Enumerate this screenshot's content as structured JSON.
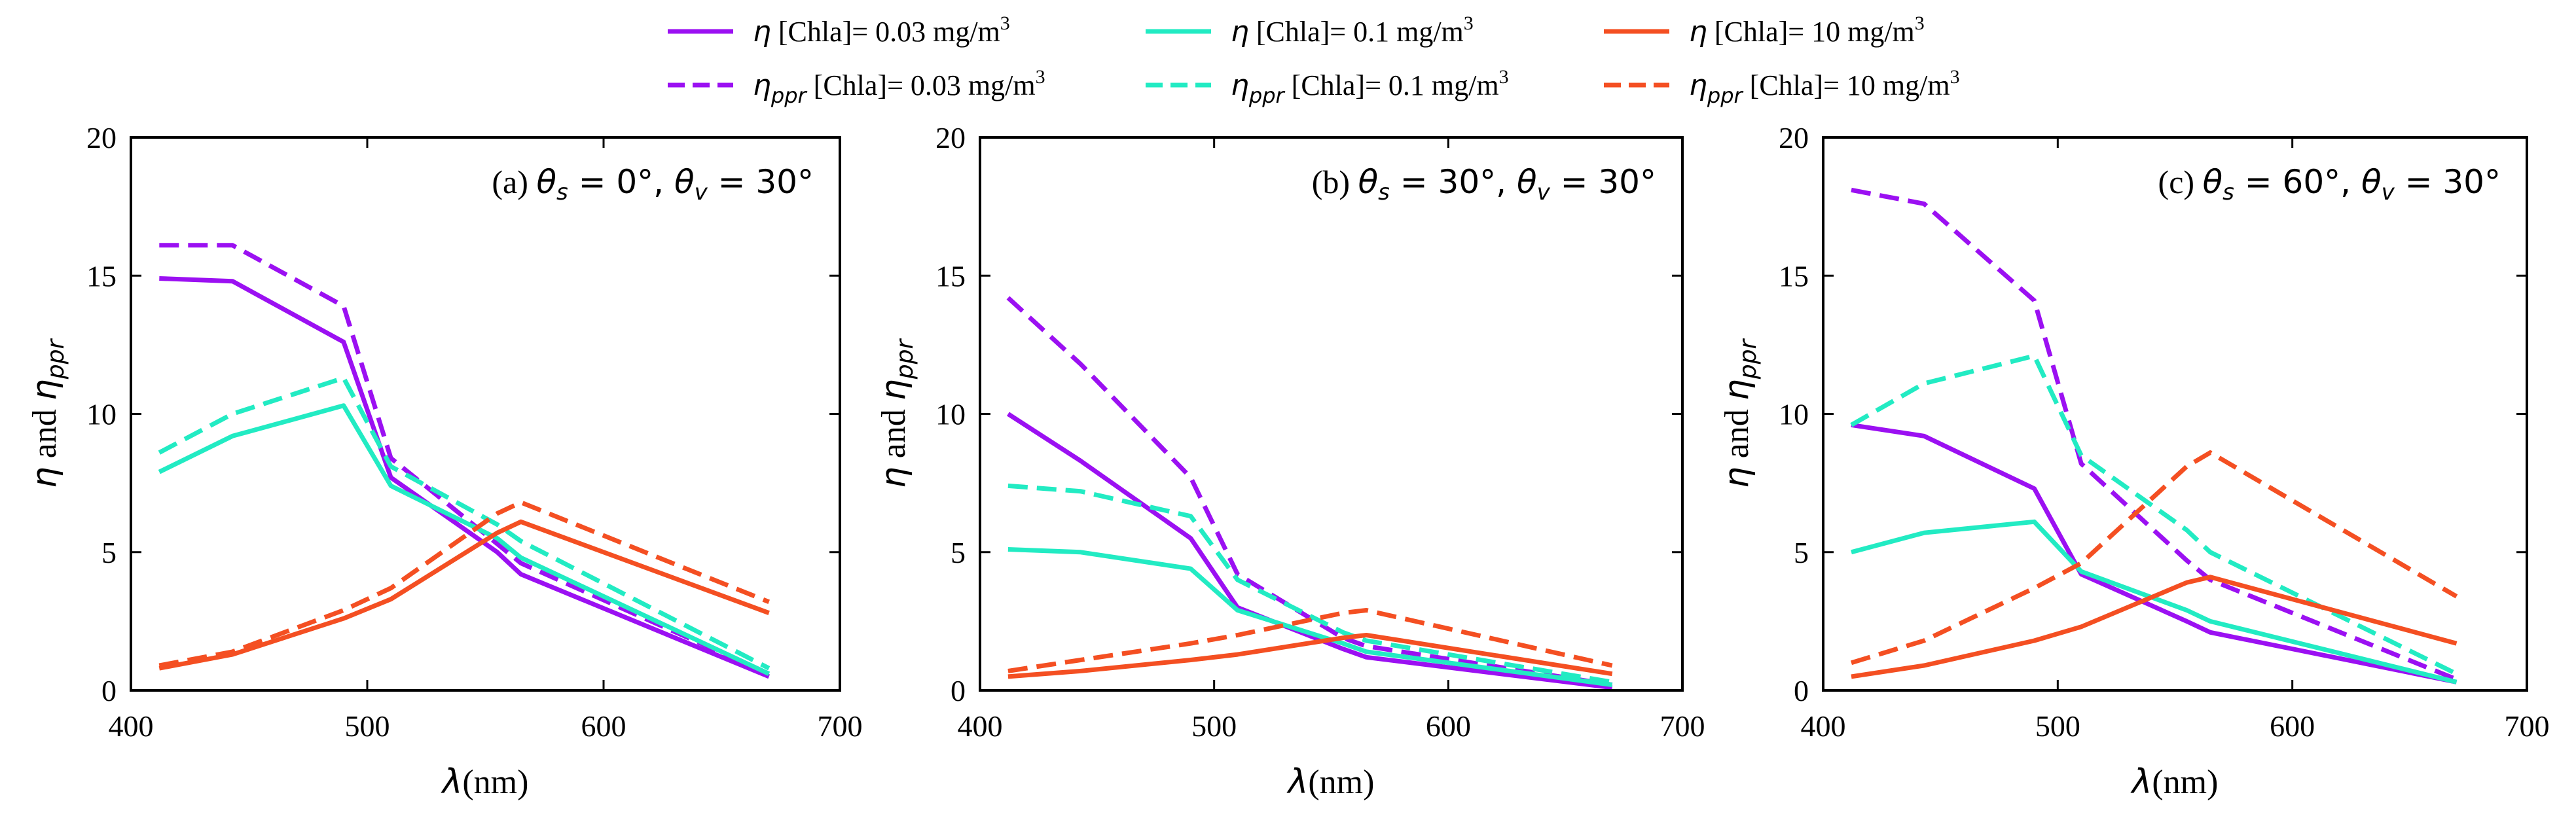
{
  "legend": {
    "entries": [
      {
        "sym": "η",
        "sub": "",
        "text": " [Chla]= 0.03 mg/m",
        "sup": "3",
        "color": "#9b10f2",
        "dash": false
      },
      {
        "sym": "η",
        "sub": "ppr",
        "text": " [Chla]= 0.03 mg/m",
        "sup": "3",
        "color": "#9b10f2",
        "dash": true
      },
      {
        "sym": "η",
        "sub": "",
        "text": " [Chla]= 0.1 mg/m",
        "sup": "3",
        "color": "#22ebc3",
        "dash": false
      },
      {
        "sym": "η",
        "sub": "ppr",
        "text": " [Chla]= 0.1 mg/m",
        "sup": "3",
        "color": "#22ebc3",
        "dash": true
      },
      {
        "sym": "η",
        "sub": "",
        "text": " [Chla]= 10 mg/m",
        "sup": "3",
        "color": "#f44f22",
        "dash": false
      },
      {
        "sym": "η",
        "sub": "ppr",
        "text": " [Chla]= 10 mg/m",
        "sup": "3",
        "color": "#f44f22",
        "dash": true
      }
    ]
  },
  "chart_data": [
    {
      "type": "line",
      "title_prefix": "(a) ",
      "title_math": "θs = 0°, θv = 30°",
      "xlabel": "λ(nm)",
      "ylabel": "η and ηppr",
      "xlim": [
        400,
        700
      ],
      "ylim": [
        0,
        20
      ],
      "xticks": [
        400,
        500,
        600,
        700
      ],
      "yticks": [
        0,
        5,
        10,
        15,
        20
      ],
      "grid": false,
      "x": [
        412,
        443,
        490,
        510,
        555,
        565,
        670
      ],
      "series": [
        {
          "color": "#9b10f2",
          "dash": false,
          "values": [
            14.9,
            14.8,
            12.6,
            7.7,
            5.0,
            4.2,
            0.5
          ]
        },
        {
          "color": "#9b10f2",
          "dash": true,
          "values": [
            16.1,
            16.1,
            13.9,
            8.4,
            5.3,
            4.6,
            0.6
          ]
        },
        {
          "color": "#22ebc3",
          "dash": false,
          "values": [
            7.9,
            9.2,
            10.3,
            7.4,
            5.5,
            4.8,
            0.6
          ]
        },
        {
          "color": "#22ebc3",
          "dash": true,
          "values": [
            8.6,
            10.0,
            11.3,
            8.1,
            6.0,
            5.4,
            0.8
          ]
        },
        {
          "color": "#f44f22",
          "dash": false,
          "values": [
            0.8,
            1.3,
            2.6,
            3.3,
            5.7,
            6.1,
            2.8
          ]
        },
        {
          "color": "#f44f22",
          "dash": true,
          "values": [
            0.9,
            1.4,
            2.9,
            3.7,
            6.4,
            6.8,
            3.2
          ]
        }
      ]
    },
    {
      "type": "line",
      "title_prefix": "(b) ",
      "title_math": "θs = 30°, θv = 30°",
      "xlabel": "λ(nm)",
      "ylabel": "η and ηppr",
      "xlim": [
        400,
        700
      ],
      "ylim": [
        0,
        20
      ],
      "xticks": [
        400,
        500,
        600,
        700
      ],
      "yticks": [
        0,
        5,
        10,
        15,
        20
      ],
      "grid": false,
      "x": [
        412,
        443,
        490,
        510,
        555,
        565,
        670
      ],
      "series": [
        {
          "color": "#9b10f2",
          "dash": false,
          "values": [
            10.0,
            8.3,
            5.5,
            3.0,
            1.5,
            1.2,
            0.1
          ]
        },
        {
          "color": "#9b10f2",
          "dash": true,
          "values": [
            14.2,
            11.8,
            7.7,
            4.2,
            1.9,
            1.6,
            0.2
          ]
        },
        {
          "color": "#22ebc3",
          "dash": false,
          "values": [
            5.1,
            5.0,
            4.4,
            2.9,
            1.7,
            1.4,
            0.2
          ]
        },
        {
          "color": "#22ebc3",
          "dash": true,
          "values": [
            7.4,
            7.2,
            6.3,
            4.0,
            2.1,
            1.8,
            0.3
          ]
        },
        {
          "color": "#f44f22",
          "dash": false,
          "values": [
            0.5,
            0.7,
            1.1,
            1.3,
            1.9,
            2.0,
            0.6
          ]
        },
        {
          "color": "#f44f22",
          "dash": true,
          "values": [
            0.7,
            1.1,
            1.7,
            2.0,
            2.8,
            2.9,
            0.9
          ]
        }
      ]
    },
    {
      "type": "line",
      "title_prefix": "(c) ",
      "title_math": "θs = 60°, θv = 30°",
      "xlabel": "λ(nm)",
      "ylabel": "η and ηppr",
      "xlim": [
        400,
        700
      ],
      "ylim": [
        0,
        20
      ],
      "xticks": [
        400,
        500,
        600,
        700
      ],
      "yticks": [
        0,
        5,
        10,
        15,
        20
      ],
      "grid": false,
      "x": [
        412,
        443,
        490,
        510,
        555,
        565,
        670
      ],
      "series": [
        {
          "color": "#9b10f2",
          "dash": false,
          "values": [
            9.6,
            9.2,
            7.3,
            4.2,
            2.5,
            2.1,
            0.3
          ]
        },
        {
          "color": "#9b10f2",
          "dash": true,
          "values": [
            18.1,
            17.6,
            14.1,
            8.2,
            4.7,
            4.0,
            0.4
          ]
        },
        {
          "color": "#22ebc3",
          "dash": false,
          "values": [
            5.0,
            5.7,
            6.1,
            4.3,
            2.9,
            2.5,
            0.3
          ]
        },
        {
          "color": "#22ebc3",
          "dash": true,
          "values": [
            9.6,
            11.1,
            12.1,
            8.5,
            5.8,
            5.0,
            0.6
          ]
        },
        {
          "color": "#f44f22",
          "dash": false,
          "values": [
            0.5,
            0.9,
            1.8,
            2.3,
            3.9,
            4.1,
            1.7
          ]
        },
        {
          "color": "#f44f22",
          "dash": true,
          "values": [
            1.0,
            1.8,
            3.7,
            4.6,
            8.1,
            8.6,
            3.4
          ]
        }
      ]
    }
  ]
}
